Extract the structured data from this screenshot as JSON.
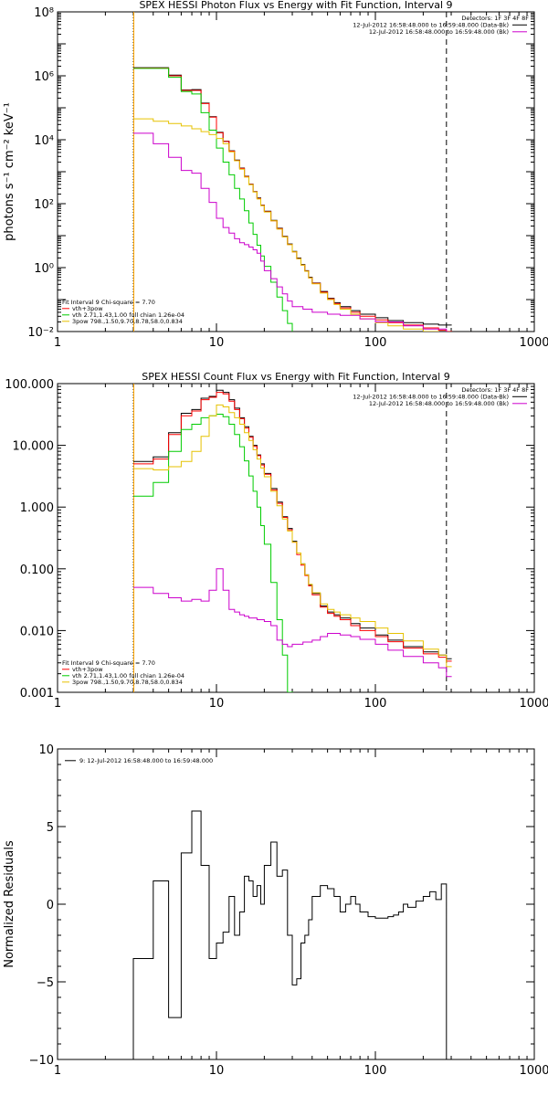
{
  "chart_data": [
    {
      "type": "line",
      "title": "SPEX HESSI Photon Flux vs Energy with Fit Function, Interval 9",
      "ylabel": "photons s⁻¹ cm⁻² keV⁻¹",
      "xlabel": "",
      "xscale": "log",
      "yscale": "log",
      "xlim": [
        1,
        1000
      ],
      "ylim": [
        0.01,
        100000000
      ],
      "xticks": [
        {
          "v": 1,
          "t": "1"
        },
        {
          "v": 10,
          "t": "10"
        },
        {
          "v": 100,
          "t": "100"
        },
        {
          "v": 1000,
          "t": "1000"
        }
      ],
      "yticks": [
        {
          "v": 0.01,
          "t": "10⁻²"
        },
        {
          "v": 1,
          "t": "10⁰"
        },
        {
          "v": 100,
          "t": "10²"
        },
        {
          "v": 10000,
          "t": "10⁴"
        },
        {
          "v": 1000000,
          "t": "10⁶"
        },
        {
          "v": 100000000,
          "t": "10⁸"
        }
      ],
      "vlines": [
        {
          "x": 3.0,
          "style": "dotted",
          "color": "#000000"
        },
        {
          "x": 3.02,
          "style": "solid",
          "color": "#ffa500"
        },
        {
          "x": 280,
          "style": "dashed",
          "color": "#000000"
        }
      ],
      "info": [
        "Detectors: 1F 3F 4F 8F",
        "12-Jul-2012 16:58:48.000 to 16:59:48.000 (Data-Bk)",
        "12-Jul-2012 16:58:48.000 to 16:59:48.000 (Bk)"
      ],
      "info_colors": [
        "",
        "#000000",
        "#cc00cc"
      ],
      "fit": [
        "Fit Interval 9   Chi-square = 7.70",
        "vth+3pow",
        "vth 2.71,1.43,1.00  full chian 1.26e-04",
        "3pow 798.,1.50,9.70,8.78,58.0,0.834"
      ],
      "fit_colors": [
        "",
        "#ff0000",
        "#00cc00",
        "#e6c200"
      ],
      "series": [
        {
          "color": "#000000",
          "x": [
            3,
            4,
            5,
            6,
            7,
            8,
            9,
            10,
            11,
            12,
            13,
            14,
            15,
            16,
            17,
            18,
            19,
            20,
            22,
            24,
            26,
            28,
            30,
            32,
            34,
            36,
            38,
            40,
            45,
            50,
            55,
            60,
            70,
            80,
            100,
            120,
            150,
            200,
            250,
            280
          ],
          "y": [
            1800000,
            1800000,
            1050000,
            360000,
            370000,
            140000,
            53000,
            17000,
            9000,
            4500,
            2300,
            1300,
            720,
            410,
            240,
            150,
            90,
            58,
            30,
            17,
            9.5,
            5.5,
            3.2,
            2.0,
            1.25,
            0.8,
            0.5,
            0.33,
            0.18,
            0.11,
            0.08,
            0.06,
            0.045,
            0.035,
            0.027,
            0.022,
            0.019,
            0.017,
            0.016,
            0.016
          ]
        },
        {
          "color": "#ff0000",
          "x": [
            3,
            4,
            5,
            6,
            7,
            8,
            9,
            10,
            11,
            12,
            13,
            14,
            15,
            16,
            17,
            18,
            19,
            20,
            22,
            24,
            26,
            28,
            30,
            32,
            34,
            36,
            38,
            40,
            45,
            50,
            55,
            60,
            70,
            80,
            100,
            120,
            150,
            200,
            250,
            280
          ],
          "y": [
            1750000,
            1750000,
            1000000,
            350000,
            350000,
            135000,
            51000,
            16500,
            8800,
            4400,
            2250,
            1270,
            700,
            400,
            235,
            145,
            88,
            56,
            29,
            16.5,
            9.2,
            5.3,
            3.1,
            1.9,
            1.2,
            0.78,
            0.48,
            0.32,
            0.17,
            0.105,
            0.075,
            0.055,
            0.04,
            0.03,
            0.023,
            0.019,
            0.016,
            0.013,
            0.011,
            0.01
          ]
        },
        {
          "color": "#00cc00",
          "x": [
            3,
            4,
            5,
            6,
            7,
            8,
            9,
            10,
            11,
            12,
            13,
            14,
            15,
            16,
            17,
            18,
            19,
            20,
            22,
            24,
            26,
            28,
            30,
            32
          ],
          "y": [
            1700000,
            1700000,
            900000,
            320000,
            270000,
            70000,
            20000,
            5500,
            2000,
            800,
            300,
            140,
            60,
            25,
            11,
            5,
            2.3,
            1.1,
            0.35,
            0.12,
            0.045,
            0.018,
            0.008,
            0.003
          ]
        },
        {
          "color": "#e6c200",
          "x": [
            3,
            4,
            5,
            6,
            7,
            8,
            9,
            10,
            11,
            12,
            13,
            14,
            15,
            16,
            17,
            18,
            19,
            20,
            22,
            24,
            26,
            28,
            30,
            32,
            34,
            36,
            38,
            40,
            45,
            50,
            55,
            60,
            70,
            80,
            100,
            120,
            150,
            200,
            250,
            280
          ],
          "y": [
            45000,
            38000,
            32000,
            27000,
            22000,
            18000,
            14500,
            11000,
            7500,
            4200,
            2200,
            1200,
            680,
            390,
            230,
            140,
            86,
            55,
            29,
            16,
            9.1,
            5.2,
            3.1,
            1.9,
            1.2,
            0.77,
            0.48,
            0.31,
            0.16,
            0.1,
            0.07,
            0.05,
            0.035,
            0.025,
            0.019,
            0.015,
            0.012,
            0.01,
            0.009,
            0.008
          ]
        },
        {
          "color": "#cc00cc",
          "x": [
            3,
            4,
            5,
            6,
            7,
            8,
            9,
            10,
            11,
            12,
            13,
            14,
            15,
            16,
            17,
            18,
            19,
            20,
            22,
            24,
            26,
            28,
            30,
            35,
            40,
            50,
            60,
            80,
            100,
            150,
            200,
            280
          ],
          "y": [
            16000,
            7500,
            2800,
            1100,
            900,
            300,
            110,
            35,
            18,
            12,
            8,
            6,
            5.2,
            4.4,
            3.6,
            2.8,
            1.6,
            0.8,
            0.45,
            0.25,
            0.15,
            0.09,
            0.06,
            0.05,
            0.04,
            0.035,
            0.032,
            0.025,
            0.02,
            0.015,
            0.012,
            0.009
          ]
        }
      ]
    },
    {
      "type": "line",
      "title": "SPEX HESSI Count Flux vs Energy with Fit Function, Interval 9",
      "ylabel": "",
      "xlabel": "",
      "xscale": "log",
      "yscale": "log",
      "xlim": [
        1,
        1000
      ],
      "ylim": [
        0.001,
        100
      ],
      "xticks": [
        {
          "v": 1,
          "t": "1"
        },
        {
          "v": 10,
          "t": "10"
        },
        {
          "v": 100,
          "t": "100"
        },
        {
          "v": 1000,
          "t": "1000"
        }
      ],
      "yticks": [
        {
          "v": 0.001,
          "t": "0.001"
        },
        {
          "v": 0.01,
          "t": "0.010"
        },
        {
          "v": 0.1,
          "t": "0.100"
        },
        {
          "v": 1,
          "t": "1.000"
        },
        {
          "v": 10,
          "t": "10.000"
        },
        {
          "v": 100,
          "t": "100.000"
        }
      ],
      "vlines": [
        {
          "x": 3.0,
          "style": "dotted",
          "color": "#000000"
        },
        {
          "x": 3.02,
          "style": "solid",
          "color": "#ffa500"
        },
        {
          "x": 280,
          "style": "dashed",
          "color": "#000000"
        }
      ],
      "info": [
        "Detectors: 1F 3F 4F 8F",
        "12-Jul-2012 16:58:48.000 to 16:59:48.000 (Data-Bk)",
        "12-Jul-2012 16:58:48.000 to 16:59:48.000 (Bk)"
      ],
      "info_colors": [
        "",
        "#000000",
        "#cc00cc"
      ],
      "fit": [
        "Fit Interval 9   Chi-square = 7.70",
        "vth+3pow",
        "vth 2.71,1.43,1.00  full chian 1.26e-04",
        "3pow 798.,1.50,9.70,8.78,58.0,0.834"
      ],
      "fit_colors": [
        "",
        "#ff0000",
        "#00cc00",
        "#e6c200"
      ],
      "series": [
        {
          "color": "#000000",
          "x": [
            3,
            4,
            5,
            6,
            7,
            8,
            9,
            10,
            11,
            12,
            13,
            14,
            15,
            16,
            17,
            18,
            19,
            20,
            22,
            24,
            26,
            28,
            30,
            32,
            34,
            36,
            38,
            40,
            45,
            50,
            55,
            60,
            70,
            80,
            100,
            120,
            150,
            200,
            250,
            280
          ],
          "y": [
            5.5,
            6.5,
            16,
            33,
            38,
            58,
            62,
            78,
            72,
            55,
            40,
            28,
            20,
            14,
            10,
            7,
            5,
            3.5,
            2.0,
            1.2,
            0.7,
            0.45,
            0.28,
            0.18,
            0.12,
            0.08,
            0.055,
            0.04,
            0.025,
            0.02,
            0.018,
            0.016,
            0.013,
            0.011,
            0.0085,
            0.007,
            0.0055,
            0.0045,
            0.004,
            0.0035
          ]
        },
        {
          "color": "#ff0000",
          "x": [
            3,
            4,
            5,
            6,
            7,
            8,
            9,
            10,
            11,
            12,
            13,
            14,
            15,
            16,
            17,
            18,
            19,
            20,
            22,
            24,
            26,
            28,
            30,
            32,
            34,
            36,
            38,
            40,
            45,
            50,
            55,
            60,
            70,
            80,
            100,
            120,
            150,
            200,
            250,
            280
          ],
          "y": [
            5.0,
            6.0,
            15,
            30,
            36,
            55,
            60,
            72,
            68,
            52,
            38,
            27,
            19,
            13.5,
            9.6,
            6.8,
            4.8,
            3.4,
            1.9,
            1.15,
            0.68,
            0.43,
            0.27,
            0.17,
            0.115,
            0.078,
            0.053,
            0.038,
            0.024,
            0.019,
            0.017,
            0.015,
            0.012,
            0.01,
            0.008,
            0.0066,
            0.0052,
            0.0042,
            0.0037,
            0.0032
          ]
        },
        {
          "color": "#00cc00",
          "x": [
            3,
            4,
            5,
            6,
            7,
            8,
            9,
            10,
            11,
            12,
            13,
            14,
            15,
            16,
            17,
            18,
            19,
            20,
            22,
            24,
            26,
            28
          ],
          "y": [
            1.5,
            2.5,
            8,
            18,
            22,
            28,
            30,
            32,
            29,
            22,
            15,
            9.5,
            5.6,
            3.2,
            1.8,
            1.0,
            0.5,
            0.25,
            0.06,
            0.015,
            0.004,
            0.001
          ]
        },
        {
          "color": "#e6c200",
          "x": [
            3,
            4,
            5,
            6,
            7,
            8,
            9,
            10,
            11,
            12,
            13,
            14,
            15,
            16,
            17,
            18,
            19,
            20,
            22,
            24,
            26,
            28,
            30,
            32,
            34,
            36,
            38,
            40,
            45,
            50,
            55,
            60,
            70,
            80,
            100,
            120,
            150,
            200,
            250,
            280
          ],
          "y": [
            4.2,
            4.0,
            4.5,
            5.5,
            8,
            14,
            30,
            45,
            42,
            34,
            28,
            22,
            16,
            12,
            8.5,
            6,
            4.3,
            3.1,
            1.8,
            1.05,
            0.64,
            0.41,
            0.27,
            0.18,
            0.12,
            0.08,
            0.056,
            0.041,
            0.027,
            0.022,
            0.02,
            0.018,
            0.016,
            0.014,
            0.011,
            0.009,
            0.0068,
            0.005,
            0.004,
            0.0026
          ]
        },
        {
          "color": "#cc00cc",
          "x": [
            3,
            4,
            5,
            6,
            7,
            8,
            9,
            10,
            11,
            12,
            13,
            14,
            15,
            16,
            17,
            18,
            19,
            20,
            22,
            24,
            26,
            28,
            30,
            35,
            40,
            45,
            50,
            60,
            70,
            80,
            100,
            120,
            150,
            200,
            250,
            280
          ],
          "y": [
            0.05,
            0.04,
            0.034,
            0.03,
            0.032,
            0.03,
            0.045,
            0.1,
            0.045,
            0.022,
            0.02,
            0.018,
            0.017,
            0.016,
            0.016,
            0.015,
            0.015,
            0.014,
            0.012,
            0.007,
            0.006,
            0.0055,
            0.006,
            0.0065,
            0.007,
            0.008,
            0.009,
            0.0085,
            0.008,
            0.0072,
            0.006,
            0.0048,
            0.0038,
            0.003,
            0.0025,
            0.0018
          ]
        }
      ]
    },
    {
      "type": "line",
      "title": "",
      "ylabel": "Normalized Residuals",
      "xlabel": "",
      "xscale": "log",
      "yscale": "linear",
      "xlim": [
        1,
        1000
      ],
      "ylim": [
        -10,
        10
      ],
      "xticks": [
        {
          "v": 1,
          "t": "1"
        },
        {
          "v": 10,
          "t": "10"
        },
        {
          "v": 100,
          "t": "100"
        },
        {
          "v": 1000,
          "t": "1000"
        }
      ],
      "yticks": [
        {
          "v": -10,
          "t": "−10"
        },
        {
          "v": -5,
          "t": "−5"
        },
        {
          "v": 0,
          "t": "0"
        },
        {
          "v": 5,
          "t": "5"
        },
        {
          "v": 10,
          "t": "10"
        }
      ],
      "legend": "9: 12-Jul-2012 16:58:48.000 to 16:59:48.000",
      "series": [
        {
          "color": "#000000",
          "step": true,
          "edges": [
            3,
            4,
            5,
            6,
            7,
            8,
            9,
            10,
            11,
            12,
            13,
            14,
            15,
            16,
            17,
            18,
            19,
            20,
            22,
            24,
            26,
            28,
            30,
            32,
            34,
            36,
            38,
            40,
            45,
            50,
            55,
            60,
            65,
            70,
            75,
            80,
            90,
            100,
            110,
            120,
            130,
            140,
            150,
            160,
            180,
            200,
            220,
            240,
            260,
            280
          ],
          "values": [
            -3.5,
            1.5,
            -7.3,
            3.3,
            6.0,
            2.5,
            -3.5,
            -2.5,
            -1.8,
            0.5,
            -2.0,
            -0.5,
            1.8,
            1.5,
            0.5,
            1.2,
            0,
            2.5,
            4.0,
            1.8,
            2.2,
            -2.0,
            -5.2,
            -4.8,
            -2.5,
            -2.0,
            -1.0,
            0.5,
            1.2,
            1.0,
            0.5,
            -0.5,
            0,
            0.5,
            0,
            -0.5,
            -0.8,
            -0.9,
            -0.9,
            -0.8,
            -0.7,
            -0.5,
            0,
            -0.2,
            0.2,
            0.5,
            0.8,
            0.3,
            1.3
          ]
        }
      ]
    }
  ]
}
